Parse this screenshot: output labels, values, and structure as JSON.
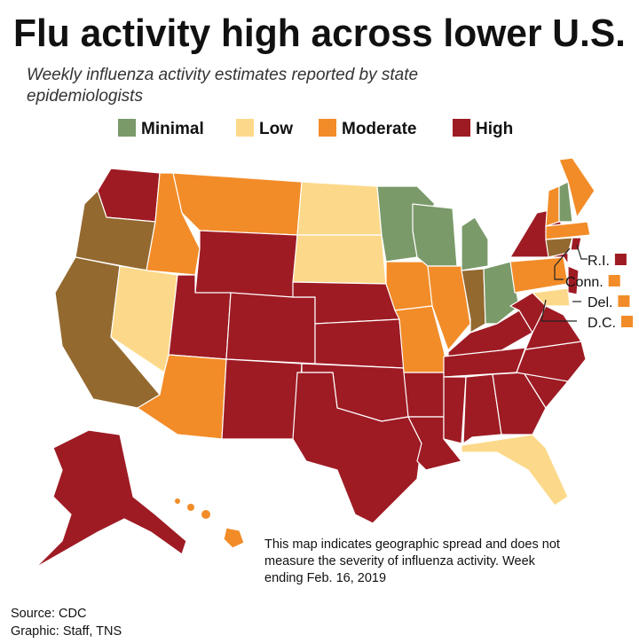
{
  "header": {
    "title": "Flu activity high across lower U.S.",
    "subtitle": [
      "Weekly influenza activity estimates reported by state",
      "epidemiologists"
    ]
  },
  "legend": {
    "items": [
      {
        "label": "Minimal",
        "color": "#7a9a6a"
      },
      {
        "label": "Low",
        "color": "#fcd98a"
      },
      {
        "label": "Moderate",
        "color": "#f28c28"
      },
      {
        "label": "High",
        "color": "#9e1b24"
      }
    ]
  },
  "callouts": [
    {
      "label": "R.I.",
      "color": "#9e1b24"
    },
    {
      "label": "Conn.",
      "color": "#f28c28"
    },
    {
      "label": "Del.",
      "color": "#f28c28"
    },
    {
      "label": "D.C.",
      "color": "#f28c28"
    }
  ],
  "note": [
    "This map indicates geographic spread and does not",
    "measure the severity of influenza activity. Week",
    "ending Feb. 16, 2019"
  ],
  "credits": {
    "source": "Source: CDC",
    "graphic": "Graphic: Staff, TNS"
  }
}
